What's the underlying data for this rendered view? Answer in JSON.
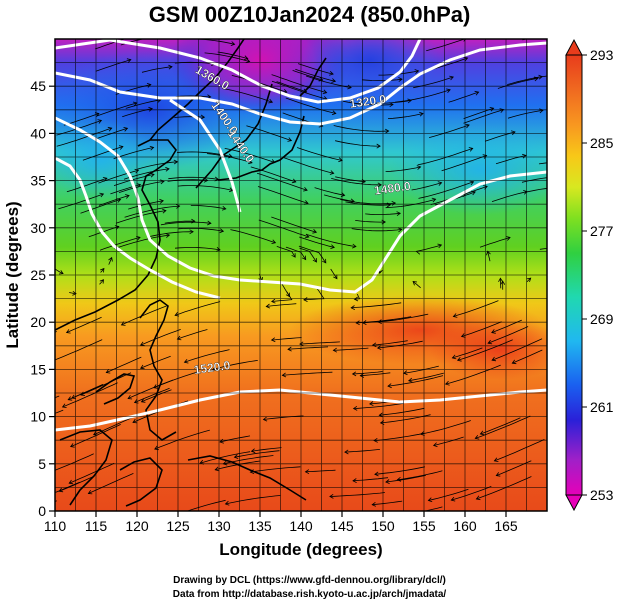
{
  "title": "GSM 00Z10Jan2024 (850.0hPa)",
  "credits": {
    "line1": "Drawing by DCL (https://www.gfd-dennou.org/library/dcl/)",
    "line2": "Data from http://database.rish.kyoto-u.ac.jp/arch/jmadata/"
  },
  "map": {
    "lon_range": [
      110,
      170
    ],
    "lat_range": [
      0,
      50
    ],
    "x_axis": {
      "label": "Longitude (degrees)",
      "ticks": [
        110,
        115,
        120,
        125,
        130,
        135,
        140,
        145,
        150,
        155,
        160,
        165
      ]
    },
    "y_axis": {
      "label": "Latitude  (degrees)",
      "ticks": [
        0,
        5,
        10,
        15,
        20,
        25,
        30,
        35,
        40,
        45
      ]
    },
    "grid_lines": true,
    "colorbar": {
      "min": 253,
      "max": 293,
      "labels": [
        293,
        285,
        277,
        269,
        261,
        253
      ],
      "colors": [
        "#e600b8",
        "#a020c8",
        "#2a20d8",
        "#1a60f0",
        "#20b8f0",
        "#20d8b0",
        "#30d040",
        "#80e020",
        "#d8e820",
        "#f8c818",
        "#f89820",
        "#f06a20",
        "#e83c1c"
      ]
    },
    "height_contours": [
      {
        "label": "1320.0",
        "lon": 146,
        "lat": 42.7
      },
      {
        "label": "1360.0",
        "lon": 127,
        "lat": 46.5
      },
      {
        "label": "1400.0",
        "lon": 129,
        "lat": 43
      },
      {
        "label": "1440.0",
        "lon": 131,
        "lat": 40
      },
      {
        "label": "1480.0",
        "lon": 149,
        "lat": 33.5
      },
      {
        "label": "1520.0",
        "lon": 127,
        "lat": 14.5
      }
    ]
  }
}
